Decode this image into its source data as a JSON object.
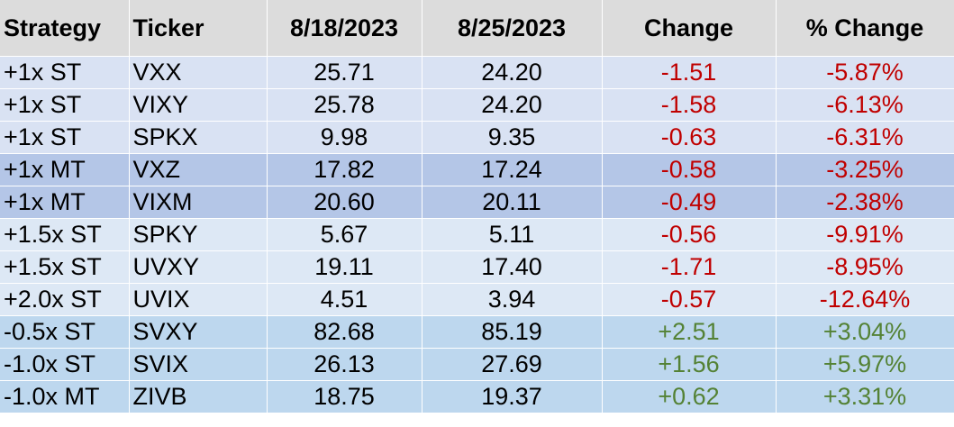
{
  "table": {
    "headers": [
      "Strategy",
      "Ticker",
      "8/18/2023",
      "8/25/2023",
      "Change",
      "% Change"
    ],
    "rows": [
      {
        "strategy": "+1x ST",
        "ticker": "VXX",
        "d1": "25.71",
        "d2": "24.20",
        "change": "-1.51",
        "pct": "-5.87%",
        "group": "st"
      },
      {
        "strategy": "+1x ST",
        "ticker": "VIXY",
        "d1": "25.78",
        "d2": "24.20",
        "change": "-1.58",
        "pct": "-6.13%",
        "group": "st"
      },
      {
        "strategy": "+1x ST",
        "ticker": "SPKX",
        "d1": "9.98",
        "d2": "9.35",
        "change": "-0.63",
        "pct": "-6.31%",
        "group": "st"
      },
      {
        "strategy": "+1x MT",
        "ticker": "VXZ",
        "d1": "17.82",
        "d2": "17.24",
        "change": "-0.58",
        "pct": "-3.25%",
        "group": "mt"
      },
      {
        "strategy": "+1x MT",
        "ticker": "VIXM",
        "d1": "20.60",
        "d2": "20.11",
        "change": "-0.49",
        "pct": "-2.38%",
        "group": "mt"
      },
      {
        "strategy": "+1.5x ST",
        "ticker": "SPKY",
        "d1": "5.67",
        "d2": "5.11",
        "change": "-0.56",
        "pct": "-9.91%",
        "group": "lev"
      },
      {
        "strategy": "+1.5x ST",
        "ticker": "UVXY",
        "d1": "19.11",
        "d2": "17.40",
        "change": "-1.71",
        "pct": "-8.95%",
        "group": "lev"
      },
      {
        "strategy": "+2.0x ST",
        "ticker": "UVIX",
        "d1": "4.51",
        "d2": "3.94",
        "change": "-0.57",
        "pct": "-12.64%",
        "group": "lev"
      },
      {
        "strategy": "-0.5x ST",
        "ticker": "SVXY",
        "d1": "82.68",
        "d2": "85.19",
        "change": "+2.51",
        "pct": "+3.04%",
        "group": "inv"
      },
      {
        "strategy": "-1.0x ST",
        "ticker": "SVIX",
        "d1": "26.13",
        "d2": "27.69",
        "change": "+1.56",
        "pct": "+5.97%",
        "group": "inv"
      },
      {
        "strategy": "-1.0x MT",
        "ticker": "ZIVB",
        "d1": "18.75",
        "d2": "19.37",
        "change": "+0.62",
        "pct": "+3.31%",
        "group": "inv"
      }
    ],
    "colors": {
      "negative": "#c00000",
      "positive": "#548235",
      "header_bg": "#dcdcdc",
      "short_term_bg": "#d9e2f3",
      "mid_term_bg": "#b4c6e7",
      "leveraged_bg": "#dde8f5",
      "inverse_bg": "#bdd7ee"
    }
  }
}
